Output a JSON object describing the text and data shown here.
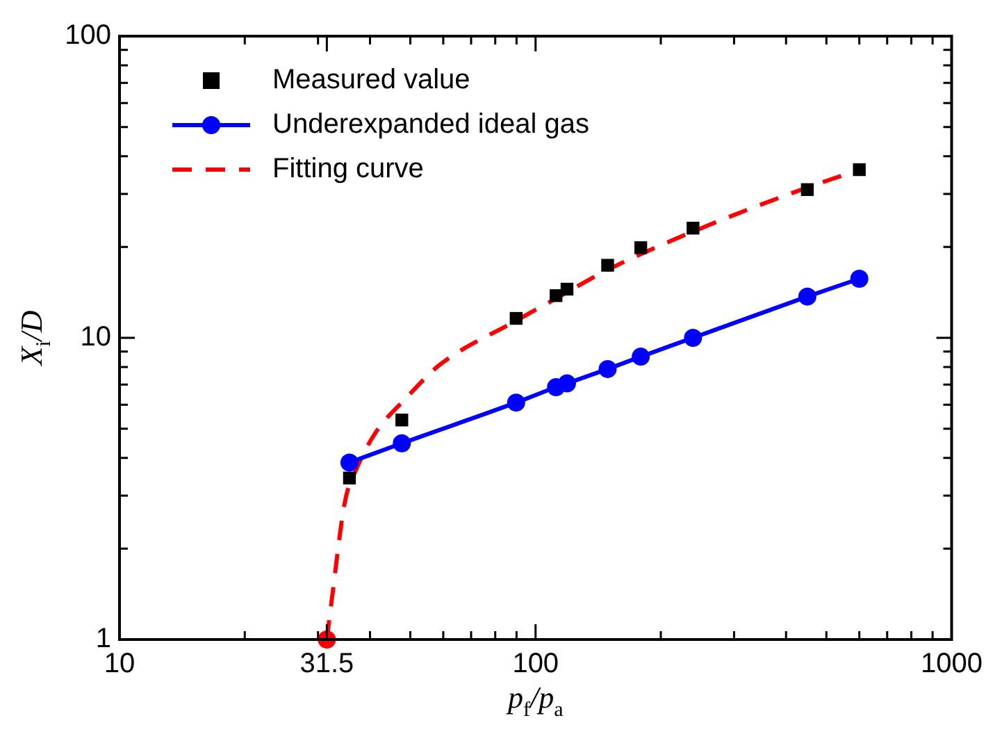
{
  "chart_data": {
    "type": "scatter",
    "xlabel": "p$_{f}$/p$_{a}$",
    "ylabel": "X$_{i}$/D",
    "log": "xy",
    "legend": "top left",
    "grid": false,
    "xlim": [
      10,
      1000
    ],
    "ylim": [
      1,
      100
    ],
    "xticks": [
      10,
      {
        "value": 20,
        "label": null
      },
      {
        "value": 30,
        "label": null
      },
      31.5,
      {
        "value": 40,
        "label": null
      },
      {
        "value": 50,
        "label": null
      },
      {
        "value": 60,
        "label": null
      },
      {
        "value": 70,
        "label": null
      },
      {
        "value": 80,
        "label": null
      },
      {
        "value": 90,
        "label": null
      },
      100,
      {
        "value": 200,
        "label": null
      },
      {
        "value": 300,
        "label": null
      },
      {
        "value": 400,
        "label": null
      },
      {
        "value": 500,
        "label": null
      },
      {
        "value": 600,
        "label": null
      },
      {
        "value": 700,
        "label": null
      },
      {
        "value": 800,
        "label": null
      },
      {
        "value": 900,
        "label": null
      },
      1000
    ],
    "yticks": [
      1,
      {
        "value": 2,
        "label": null
      },
      {
        "value": 3,
        "label": null
      },
      {
        "value": 4,
        "label": null
      },
      {
        "value": 5,
        "label": null
      },
      {
        "value": 6,
        "label": null
      },
      {
        "value": 7,
        "label": null
      },
      {
        "value": 8,
        "label": null
      },
      {
        "value": 9,
        "label": null
      },
      10,
      {
        "value": 20,
        "label": null
      },
      {
        "value": 30,
        "label": null
      },
      {
        "value": 40,
        "label": null
      },
      {
        "value": 50,
        "label": null
      },
      {
        "value": 60,
        "label": null
      },
      {
        "value": 70,
        "label": null
      },
      {
        "value": 80,
        "label": null
      },
      {
        "value": 90,
        "label": null
      },
      100
    ],
    "series": [
      {
        "name": "Measured value",
        "type": "scatter",
        "color": "#000000",
        "marker": "square",
        "x": [
          35.7,
          47.7,
          89.8,
          112,
          119,
          149,
          179,
          239,
          450,
          600
        ],
        "values": [
          3.43,
          5.34,
          11.6,
          13.8,
          14.5,
          17.4,
          19.9,
          23.1,
          31.0,
          36.1
        ]
      },
      {
        "name": "Underexpanded ideal gas",
        "type": "line",
        "color": "#0000ff",
        "marker": "circle",
        "line_style": "solid",
        "x": [
          35.7,
          47.7,
          89.8,
          112,
          119,
          149,
          179,
          239,
          450,
          600
        ],
        "values": [
          3.86,
          4.47,
          6.1,
          6.86,
          7.06,
          7.88,
          8.66,
          10.0,
          13.7,
          15.7
        ]
      },
      {
        "name": "Fitting curve",
        "type": "line",
        "color": "#ff0000",
        "marker": "none",
        "line_style": "dashed",
        "x": [
          31.5,
          32.3,
          34.8,
          37.2,
          41.1,
          49.1,
          58.6,
          89.8,
          112,
          149,
          239,
          450,
          600
        ],
        "values": [
          1,
          1.32,
          2.85,
          3.7,
          4.81,
          6.36,
          8.1,
          11.4,
          13.5,
          16.8,
          22.5,
          31.5,
          36
        ]
      },
      {
        "type": "scatter",
        "color": "#ff0000",
        "marker": "circle",
        "x": [
          31.5
        ],
        "values": [
          1
        ]
      }
    ]
  }
}
